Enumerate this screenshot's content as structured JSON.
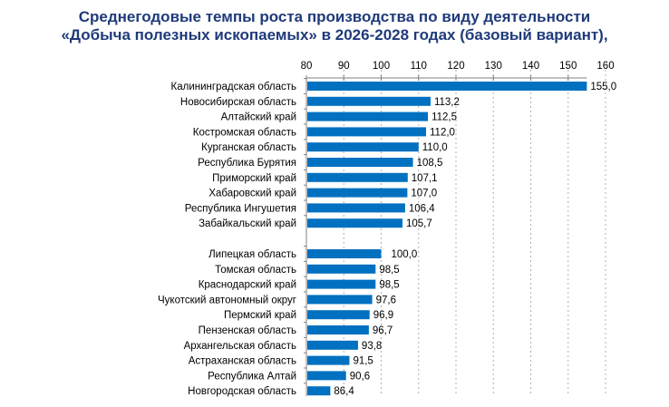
{
  "chart_data": {
    "type": "bar",
    "orientation": "horizontal",
    "title_line1": "Среднегодовые темпы роста производства по виду деятельности",
    "title_line2": "«Добыча полезных ископаемых» в 2026-2028 годах (базовый вариант),",
    "xlim": [
      80,
      160
    ],
    "xticks": [
      80,
      90,
      100,
      110,
      120,
      130,
      140,
      150,
      160
    ],
    "xtick_labels": [
      "80",
      "90",
      "100",
      "110",
      "120",
      "130",
      "140",
      "150",
      "160"
    ],
    "grid": true,
    "axis_position": "top",
    "bar_color": "#0070c0",
    "groups": [
      {
        "categories": [
          "Калининградская область",
          "Новосибирская область",
          "Алтайский край",
          "Костромская область",
          "Курганская область",
          "Республика Бурятия",
          "Приморский край",
          "Хабаровский край",
          "Республика Ингушетия",
          "Забайкальский край"
        ],
        "values": [
          155.0,
          113.2,
          112.5,
          112.0,
          110.0,
          108.5,
          107.1,
          107.0,
          106.4,
          105.7
        ],
        "labels": [
          "155,0",
          "113,2",
          "112,5",
          "112,0",
          "110,0",
          "108,5",
          "107,1",
          "107,0",
          "106,4",
          "105,7"
        ]
      },
      {
        "categories": [
          "Липецкая область",
          "Томская область",
          "Краснодарский край",
          "Чукотский автономный округ",
          "Пермский край",
          "Пензенская область",
          "Архангельская область",
          "Астраханская область",
          "Республика Алтай",
          "Новгородская область"
        ],
        "values": [
          100.0,
          98.5,
          98.5,
          97.6,
          96.9,
          96.7,
          93.8,
          91.5,
          90.6,
          86.4
        ],
        "labels": [
          "100,0",
          "98,5",
          "98,5",
          "97,6",
          "96,9",
          "96,7",
          "93,8",
          "91,5",
          "90,6",
          "86,4"
        ]
      }
    ]
  }
}
